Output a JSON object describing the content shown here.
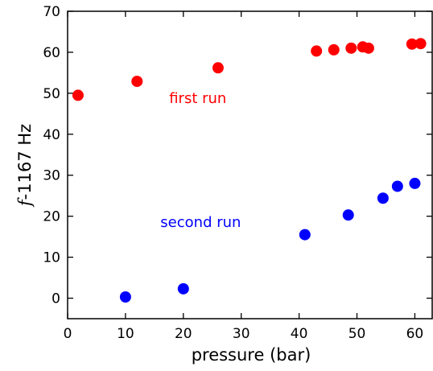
{
  "chart_data": {
    "type": "scatter",
    "xlabel": "pressure (bar)",
    "ylabel": {
      "italic": "f",
      "rest": "-1167 Hz"
    },
    "xlim": [
      0,
      63
    ],
    "ylim": [
      -5,
      70
    ],
    "xticks": [
      0,
      10,
      20,
      30,
      40,
      50,
      60
    ],
    "yticks": [
      0,
      10,
      20,
      30,
      40,
      50,
      60,
      70
    ],
    "grid": false,
    "series": [
      {
        "name": "first run",
        "color": "#ff0000",
        "points": [
          {
            "x": 1.8,
            "y": 49.5
          },
          {
            "x": 12,
            "y": 52.9
          },
          {
            "x": 26,
            "y": 56.2
          },
          {
            "x": 43,
            "y": 60.3
          },
          {
            "x": 46,
            "y": 60.6
          },
          {
            "x": 49,
            "y": 61.0
          },
          {
            "x": 51,
            "y": 61.3
          },
          {
            "x": 52,
            "y": 61.0
          },
          {
            "x": 59.5,
            "y": 62.0
          },
          {
            "x": 61,
            "y": 62.1
          }
        ]
      },
      {
        "name": "second run",
        "color": "#0000ff",
        "points": [
          {
            "x": 10,
            "y": 0.3
          },
          {
            "x": 20,
            "y": 2.3
          },
          {
            "x": 41,
            "y": 15.5
          },
          {
            "x": 48.5,
            "y": 20.3
          },
          {
            "x": 54.5,
            "y": 24.4
          },
          {
            "x": 57,
            "y": 27.3
          },
          {
            "x": 60,
            "y": 28.0
          }
        ]
      }
    ],
    "annotations": [
      {
        "text": "first run",
        "series": 0,
        "x": 22.5,
        "y": 47.6
      },
      {
        "text": "second run",
        "series": 1,
        "x": 23,
        "y": 17.4
      }
    ]
  }
}
